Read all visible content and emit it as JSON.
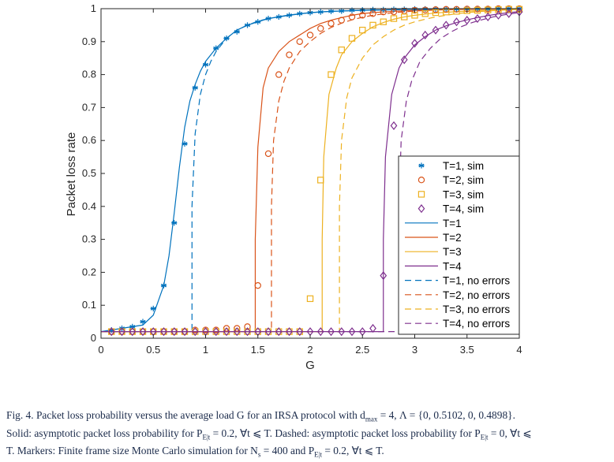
{
  "chart_data": {
    "type": "line",
    "xlabel": "G",
    "ylabel": "Packet loss rate",
    "xlim": [
      0,
      4
    ],
    "ylim": [
      0,
      1
    ],
    "xticks": [
      "0",
      "0.5",
      "1",
      "1.5",
      "2",
      "2.5",
      "3",
      "3.5",
      "4"
    ],
    "yticks": [
      "0",
      "0.1",
      "0.2",
      "0.3",
      "0.4",
      "0.5",
      "0.6",
      "0.7",
      "0.8",
      "0.9",
      "1"
    ],
    "grid": false,
    "legend_position": "right",
    "colors": [
      "#0072BD",
      "#D95319",
      "#EDB120",
      "#7E2F8E"
    ],
    "markers": [
      "asterisk",
      "circle",
      "square",
      "diamond"
    ],
    "sim_series": [
      {
        "name": "T=1, sim",
        "x": [
          0.1,
          0.2,
          0.3,
          0.4,
          0.5,
          0.6,
          0.7,
          0.8,
          0.9,
          1.0,
          1.1,
          1.2,
          1.3,
          1.4,
          1.5,
          1.6,
          1.7,
          1.8,
          1.9,
          2.0,
          2.1,
          2.2,
          2.3,
          2.4,
          2.5,
          2.6,
          2.7,
          2.8,
          2.9,
          3.0,
          3.1,
          3.2,
          3.3,
          3.4,
          3.5,
          3.6,
          3.7,
          3.8,
          3.9,
          4.0
        ],
        "y": [
          0.025,
          0.03,
          0.035,
          0.05,
          0.09,
          0.16,
          0.35,
          0.59,
          0.76,
          0.83,
          0.88,
          0.91,
          0.93,
          0.95,
          0.96,
          0.97,
          0.975,
          0.98,
          0.985,
          0.988,
          0.99,
          0.992,
          0.993,
          0.995,
          0.996,
          0.997,
          0.997,
          0.998,
          0.998,
          0.999,
          0.999,
          0.999,
          0.999,
          0.999,
          1,
          1,
          1,
          1,
          1,
          1
        ]
      },
      {
        "name": "T=2, sim",
        "x": [
          0.1,
          0.2,
          0.3,
          0.4,
          0.5,
          0.6,
          0.7,
          0.8,
          0.9,
          1.0,
          1.1,
          1.2,
          1.3,
          1.4,
          1.5,
          1.6,
          1.7,
          1.8,
          1.9,
          2.0,
          2.1,
          2.2,
          2.3,
          2.4,
          2.5,
          2.6,
          2.7,
          2.8,
          2.9,
          3.0,
          3.1,
          3.2,
          3.3,
          3.4,
          3.5,
          3.6,
          3.7,
          3.8,
          3.9,
          4.0
        ],
        "y": [
          0.02,
          0.02,
          0.02,
          0.02,
          0.02,
          0.02,
          0.02,
          0.02,
          0.025,
          0.025,
          0.025,
          0.03,
          0.03,
          0.035,
          0.16,
          0.56,
          0.8,
          0.86,
          0.9,
          0.92,
          0.94,
          0.955,
          0.965,
          0.975,
          0.98,
          0.985,
          0.99,
          0.99,
          0.993,
          0.995,
          0.996,
          0.997,
          0.998,
          0.998,
          0.999,
          0.999,
          0.999,
          1,
          1,
          1
        ]
      },
      {
        "name": "T=3, sim",
        "x": [
          0.1,
          0.2,
          0.3,
          0.4,
          0.5,
          0.6,
          0.7,
          0.8,
          0.9,
          1.0,
          1.1,
          1.2,
          1.3,
          1.4,
          1.5,
          1.6,
          1.7,
          1.8,
          1.9,
          2.0,
          2.1,
          2.2,
          2.3,
          2.4,
          2.5,
          2.6,
          2.7,
          2.8,
          2.9,
          3.0,
          3.1,
          3.2,
          3.3,
          3.4,
          3.5,
          3.6,
          3.7,
          3.8,
          3.9,
          4.0
        ],
        "y": [
          0.02,
          0.02,
          0.02,
          0.02,
          0.02,
          0.02,
          0.02,
          0.02,
          0.02,
          0.02,
          0.02,
          0.02,
          0.02,
          0.02,
          0.02,
          0.02,
          0.02,
          0.02,
          0.02,
          0.12,
          0.48,
          0.8,
          0.875,
          0.91,
          0.935,
          0.95,
          0.96,
          0.97,
          0.975,
          0.98,
          0.985,
          0.988,
          0.99,
          0.992,
          0.994,
          0.995,
          0.996,
          0.997,
          0.998,
          0.998
        ]
      },
      {
        "name": "T=4, sim",
        "x": [
          0.1,
          0.2,
          0.3,
          0.4,
          0.5,
          0.6,
          0.7,
          0.8,
          0.9,
          1.0,
          1.1,
          1.2,
          1.3,
          1.4,
          1.5,
          1.6,
          1.7,
          1.8,
          1.9,
          2.0,
          2.1,
          2.2,
          2.3,
          2.4,
          2.5,
          2.6,
          2.7,
          2.8,
          2.9,
          3.0,
          3.1,
          3.2,
          3.3,
          3.4,
          3.5,
          3.6,
          3.7,
          3.8,
          3.9,
          4.0
        ],
        "y": [
          0.02,
          0.02,
          0.02,
          0.02,
          0.02,
          0.02,
          0.02,
          0.02,
          0.02,
          0.02,
          0.02,
          0.02,
          0.02,
          0.02,
          0.02,
          0.02,
          0.02,
          0.02,
          0.02,
          0.02,
          0.02,
          0.02,
          0.02,
          0.02,
          0.02,
          0.03,
          0.19,
          0.645,
          0.845,
          0.895,
          0.92,
          0.935,
          0.95,
          0.96,
          0.965,
          0.97,
          0.975,
          0.98,
          0.985,
          0.99
        ]
      }
    ],
    "theory_series": [
      {
        "name": "T=1",
        "style": "solid",
        "g_threshold": 0.52,
        "floor": 0.02,
        "x": [
          0.0,
          0.4,
          0.5,
          0.6,
          0.65,
          0.7,
          0.75,
          0.8,
          0.85,
          0.9,
          0.95,
          1.0,
          1.1,
          1.2,
          1.3,
          1.4,
          1.5,
          1.6,
          1.8,
          2.0,
          2.2,
          2.5,
          3.0,
          3.5,
          4.0
        ],
        "y": [
          0.02,
          0.04,
          0.07,
          0.16,
          0.25,
          0.38,
          0.52,
          0.64,
          0.72,
          0.77,
          0.81,
          0.84,
          0.88,
          0.91,
          0.935,
          0.95,
          0.96,
          0.97,
          0.98,
          0.988,
          0.992,
          0.995,
          0.998,
          0.999,
          1.0
        ]
      },
      {
        "name": "T=2",
        "style": "solid",
        "g_threshold": 1.475,
        "floor": 0.02,
        "x": [
          1.475,
          1.5,
          1.55,
          1.6,
          1.7,
          1.8,
          1.9,
          2.0,
          2.1,
          2.2,
          2.3,
          2.4,
          2.5,
          2.6,
          2.7,
          2.8,
          3.0,
          3.2,
          3.5,
          4.0
        ],
        "y": [
          0.3,
          0.58,
          0.76,
          0.82,
          0.87,
          0.9,
          0.92,
          0.94,
          0.955,
          0.965,
          0.973,
          0.98,
          0.985,
          0.988,
          0.99,
          0.992,
          0.995,
          0.997,
          0.998,
          1.0
        ]
      },
      {
        "name": "T=3",
        "style": "solid",
        "g_threshold": 2.115,
        "floor": 0.02,
        "x": [
          2.115,
          2.13,
          2.18,
          2.25,
          2.3,
          2.4,
          2.5,
          2.6,
          2.7,
          2.8,
          2.9,
          3.0,
          3.2,
          3.4,
          3.6,
          3.8,
          4.0
        ],
        "y": [
          0.3,
          0.55,
          0.74,
          0.82,
          0.86,
          0.9,
          0.925,
          0.945,
          0.958,
          0.968,
          0.975,
          0.98,
          0.987,
          0.991,
          0.994,
          0.996,
          0.998
        ]
      },
      {
        "name": "T=4",
        "style": "solid",
        "g_threshold": 2.7,
        "floor": 0.02,
        "x": [
          2.7,
          2.72,
          2.78,
          2.85,
          2.9,
          3.0,
          3.1,
          3.2,
          3.3,
          3.4,
          3.5,
          3.6,
          3.7,
          3.8,
          3.9,
          4.0
        ],
        "y": [
          0.3,
          0.55,
          0.74,
          0.82,
          0.85,
          0.89,
          0.915,
          0.935,
          0.948,
          0.958,
          0.966,
          0.973,
          0.979,
          0.984,
          0.988,
          0.991
        ]
      },
      {
        "name": "T=1, no errors",
        "style": "dashed",
        "g_threshold": 0.87,
        "floor": 0.02,
        "x": [
          0.87,
          0.9,
          0.95,
          1.0,
          1.05,
          1.1,
          1.2,
          1.3,
          1.4,
          1.5,
          1.6,
          1.8,
          2.0,
          2.2,
          2.5,
          3.0,
          3.5,
          4.0
        ],
        "y": [
          0.4,
          0.62,
          0.74,
          0.8,
          0.84,
          0.87,
          0.91,
          0.935,
          0.95,
          0.962,
          0.97,
          0.981,
          0.988,
          0.992,
          0.995,
          0.998,
          0.999,
          1.0
        ]
      },
      {
        "name": "T=2, no errors",
        "style": "dashed",
        "g_threshold": 1.63,
        "floor": 0.02,
        "x": [
          1.63,
          1.65,
          1.7,
          1.75,
          1.8,
          1.9,
          2.0,
          2.1,
          2.2,
          2.3,
          2.4,
          2.5,
          2.6,
          2.8,
          3.0,
          3.2,
          3.5,
          4.0
        ],
        "y": [
          0.4,
          0.6,
          0.72,
          0.78,
          0.82,
          0.87,
          0.9,
          0.925,
          0.943,
          0.956,
          0.966,
          0.974,
          0.98,
          0.988,
          0.993,
          0.996,
          0.998,
          1.0
        ]
      },
      {
        "name": "T=3, no errors",
        "style": "dashed",
        "g_threshold": 2.28,
        "floor": 0.02,
        "x": [
          2.28,
          2.3,
          2.35,
          2.4,
          2.5,
          2.6,
          2.7,
          2.8,
          2.9,
          3.0,
          3.1,
          3.2,
          3.4,
          3.6,
          3.8,
          4.0
        ],
        "y": [
          0.4,
          0.6,
          0.73,
          0.79,
          0.85,
          0.89,
          0.915,
          0.935,
          0.95,
          0.96,
          0.968,
          0.975,
          0.985,
          0.991,
          0.995,
          0.998
        ]
      },
      {
        "name": "T=4, no errors",
        "style": "dashed",
        "g_threshold": 2.85,
        "floor": 0.02,
        "x": [
          2.85,
          2.87,
          2.92,
          2.97,
          3.05,
          3.15,
          3.25,
          3.35,
          3.45,
          3.55,
          3.65,
          3.75,
          3.85,
          3.95,
          4.0
        ],
        "y": [
          0.4,
          0.6,
          0.72,
          0.78,
          0.84,
          0.88,
          0.91,
          0.93,
          0.946,
          0.958,
          0.967,
          0.975,
          0.981,
          0.986,
          0.988
        ]
      }
    ],
    "legend": [
      "T=1, sim",
      "T=2, sim",
      "T=3, sim",
      "T=4, sim",
      "T=1",
      "T=2",
      "T=3",
      "T=4",
      "T=1, no errors",
      "T=2, no errors",
      "T=3, no errors",
      "T=4, no errors"
    ]
  },
  "caption": {
    "line1": "Fig. 4.   Packet loss probability versus the average load G for an IRSA protocol with d",
    "line1_sub": "max",
    "line1_end": " = 4, Λ = {0, 0.5102, 0, 0.4898}.",
    "line2": "Solid: asymptotic packet loss probability for P",
    "line2_sub": "E|t",
    "line2_mid": " = 0.2, ∀t ⩽ T. Dashed: asymptotic packet loss probability for P",
    "line2_sub2": "E|t",
    "line2_end": " = 0, ∀t ⩽",
    "line3": "T. Markers: Finite frame size Monte Carlo simulation for N",
    "line3_sub": "s",
    "line3_mid": " = 400 and P",
    "line3_sub2": "E|t",
    "line3_end": " = 0.2, ∀t ⩽ T."
  }
}
